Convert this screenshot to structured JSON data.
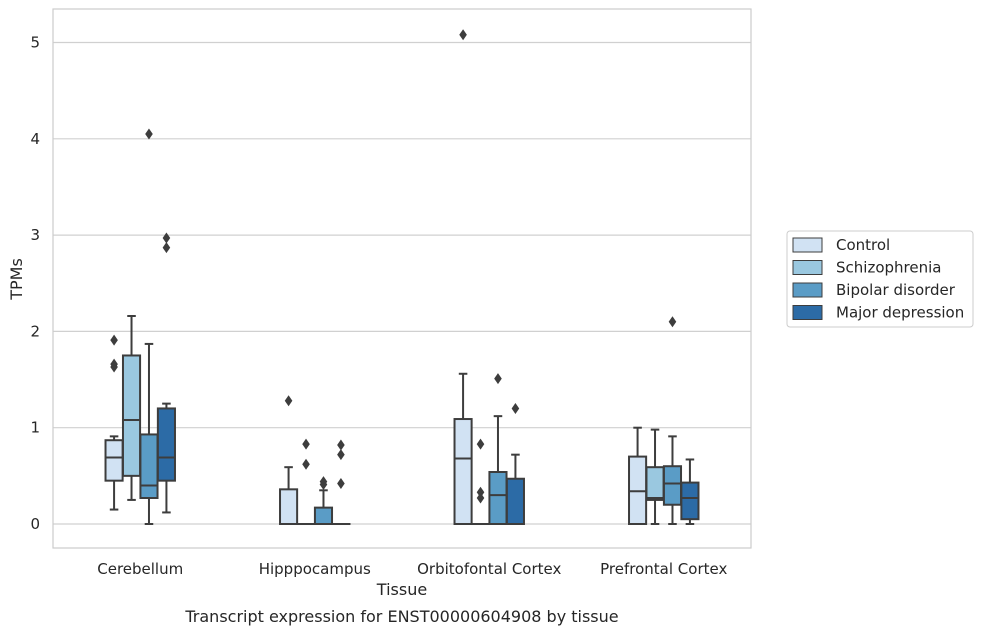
{
  "chart_data": {
    "type": "box",
    "xlabel": "Tissue",
    "ylabel": "TPMs",
    "caption": "Transcript expression for ENST00000604908 by tissue",
    "ylim": [
      -0.25,
      5.35
    ],
    "yticks": [
      0,
      1,
      2,
      3,
      4,
      5
    ],
    "grid": "horizontal",
    "legend_placement": "right",
    "categories": [
      "Cerebellum",
      "Hipppocampus",
      "Orbitofontal Cortex",
      "Prefrontal Cortex"
    ],
    "series": [
      {
        "name": "Control",
        "color": "#d1e2f3",
        "boxes": [
          {
            "whislo": 0.15,
            "q1": 0.45,
            "med": 0.69,
            "q3": 0.87,
            "whishi": 0.91,
            "fliers": [
              1.91,
              1.66,
              1.63
            ]
          },
          {
            "whislo": 0.0,
            "q1": 0.0,
            "med": 0.0,
            "q3": 0.36,
            "whishi": 0.59,
            "fliers": [
              1.28
            ]
          },
          {
            "whislo": 0.0,
            "q1": 0.0,
            "med": 0.68,
            "q3": 1.09,
            "whishi": 1.56,
            "fliers": [
              5.08
            ]
          },
          {
            "whislo": 0.0,
            "q1": 0.0,
            "med": 0.34,
            "q3": 0.7,
            "whishi": 1.0,
            "fliers": []
          }
        ]
      },
      {
        "name": "Schizophrenia",
        "color": "#9ac8e0",
        "boxes": [
          {
            "whislo": 0.25,
            "q1": 0.5,
            "med": 1.08,
            "q3": 1.75,
            "whishi": 2.16,
            "fliers": []
          },
          {
            "whislo": 0.0,
            "q1": 0.0,
            "med": 0.0,
            "q3": 0.0,
            "whishi": 0.0,
            "fliers": [
              0.83,
              0.62
            ]
          },
          {
            "whislo": 0.0,
            "q1": 0.0,
            "med": 0.0,
            "q3": 0.0,
            "whishi": 0.0,
            "fliers": [
              0.83,
              0.33,
              0.27
            ]
          },
          {
            "whislo": 0.0,
            "q1": 0.25,
            "med": 0.27,
            "q3": 0.59,
            "whishi": 0.98,
            "fliers": []
          }
        ]
      },
      {
        "name": "Bipolar disorder",
        "color": "#5a9cc6",
        "boxes": [
          {
            "whislo": 0.0,
            "q1": 0.27,
            "med": 0.4,
            "q3": 0.93,
            "whishi": 1.87,
            "fliers": [
              4.05
            ]
          },
          {
            "whislo": 0.0,
            "q1": 0.0,
            "med": 0.0,
            "q3": 0.17,
            "whishi": 0.35,
            "fliers": [
              0.44,
              0.41
            ]
          },
          {
            "whislo": 0.0,
            "q1": 0.0,
            "med": 0.3,
            "q3": 0.54,
            "whishi": 1.12,
            "fliers": [
              1.51
            ]
          },
          {
            "whislo": 0.0,
            "q1": 0.2,
            "med": 0.42,
            "q3": 0.6,
            "whishi": 0.91,
            "fliers": [
              2.1
            ]
          }
        ]
      },
      {
        "name": "Major depression",
        "color": "#2c6ba6",
        "boxes": [
          {
            "whislo": 0.12,
            "q1": 0.45,
            "med": 0.69,
            "q3": 1.2,
            "whishi": 1.25,
            "fliers": [
              2.97,
              2.87
            ]
          },
          {
            "whislo": 0.0,
            "q1": 0.0,
            "med": 0.0,
            "q3": 0.0,
            "whishi": 0.0,
            "fliers": [
              0.82,
              0.72,
              0.42
            ]
          },
          {
            "whislo": 0.0,
            "q1": 0.0,
            "med": 0.0,
            "q3": 0.47,
            "whishi": 0.72,
            "fliers": [
              1.2
            ]
          },
          {
            "whislo": 0.0,
            "q1": 0.05,
            "med": 0.27,
            "q3": 0.43,
            "whishi": 0.67,
            "fliers": []
          }
        ]
      }
    ]
  }
}
